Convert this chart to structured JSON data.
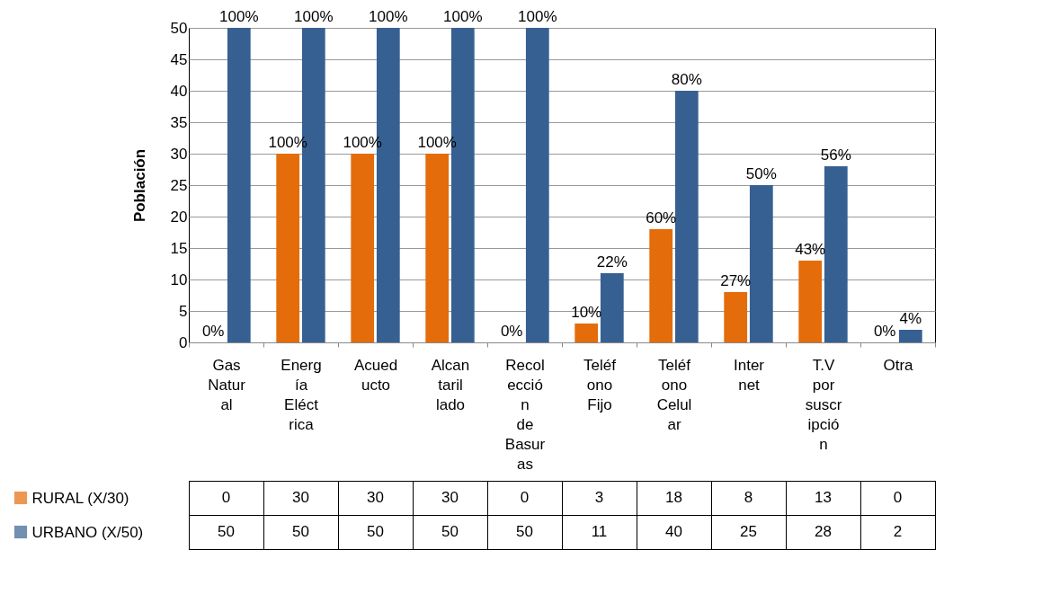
{
  "chart_data": {
    "type": "bar",
    "ylabel": "Población",
    "categories": [
      "Gas Natural",
      "Energía Eléctrica",
      "Acueducto",
      "Alcantarillado",
      "Recolección de Basuras",
      "Teléfono Fijo",
      "Teléfono Celular",
      "Internet",
      "T.V por suscripción",
      "Otra"
    ],
    "series": [
      {
        "name": "RURAL (X/30)",
        "color": "#e46c0a",
        "values": [
          0,
          30,
          30,
          30,
          0,
          3,
          18,
          8,
          13,
          0
        ]
      },
      {
        "name": "URBANO (X/50)",
        "color": "#376092",
        "values": [
          50,
          50,
          50,
          50,
          50,
          11,
          40,
          25,
          28,
          2
        ]
      }
    ],
    "annotations": [
      {
        "text": "0%",
        "x": "Gas Natural",
        "y": 0
      },
      {
        "text": "100%",
        "x": "Gas Natural",
        "y": 50
      },
      {
        "text": "100%",
        "x": "Energía Eléctrica",
        "y": 30
      },
      {
        "text": "100%",
        "x": "Energía Eléctrica",
        "y": 50
      },
      {
        "text": "100%",
        "x": "Acueducto",
        "y": 30
      },
      {
        "text": "100%",
        "x": "Acueducto",
        "y": 50
      },
      {
        "text": "100%",
        "x": "Alcantarillado",
        "y": 30
      },
      {
        "text": "100%",
        "x": "Alcantarillado",
        "y": 50
      },
      {
        "text": "0%",
        "x": "Recolección de Basuras",
        "y": 0
      },
      {
        "text": "100%",
        "x": "Recolección de Basuras",
        "y": 50
      },
      {
        "text": "10%",
        "x": "Teléfono Fijo",
        "y": 3
      },
      {
        "text": "22%",
        "x": "Teléfono Fijo",
        "y": 11
      },
      {
        "text": "60%",
        "x": "Teléfono Celular",
        "y": 18
      },
      {
        "text": "80%",
        "x": "Teléfono Celular",
        "y": 40
      },
      {
        "text": "27%",
        "x": "Internet",
        "y": 8
      },
      {
        "text": "50%",
        "x": "Internet",
        "y": 25
      },
      {
        "text": "43%",
        "x": "T.V por suscripción",
        "y": 13
      },
      {
        "text": "56%",
        "x": "T.V por suscripción",
        "y": 28
      },
      {
        "text": "0%",
        "x": "Otra",
        "y": 0
      },
      {
        "text": "4%",
        "x": "Otra",
        "y": 2
      }
    ],
    "ylim": [
      0,
      50
    ],
    "yticks": [
      0,
      5,
      10,
      15,
      20,
      25,
      30,
      35,
      40,
      45,
      50
    ],
    "grid": "y",
    "legend": "bottom left",
    "data_labels": true
  }
}
